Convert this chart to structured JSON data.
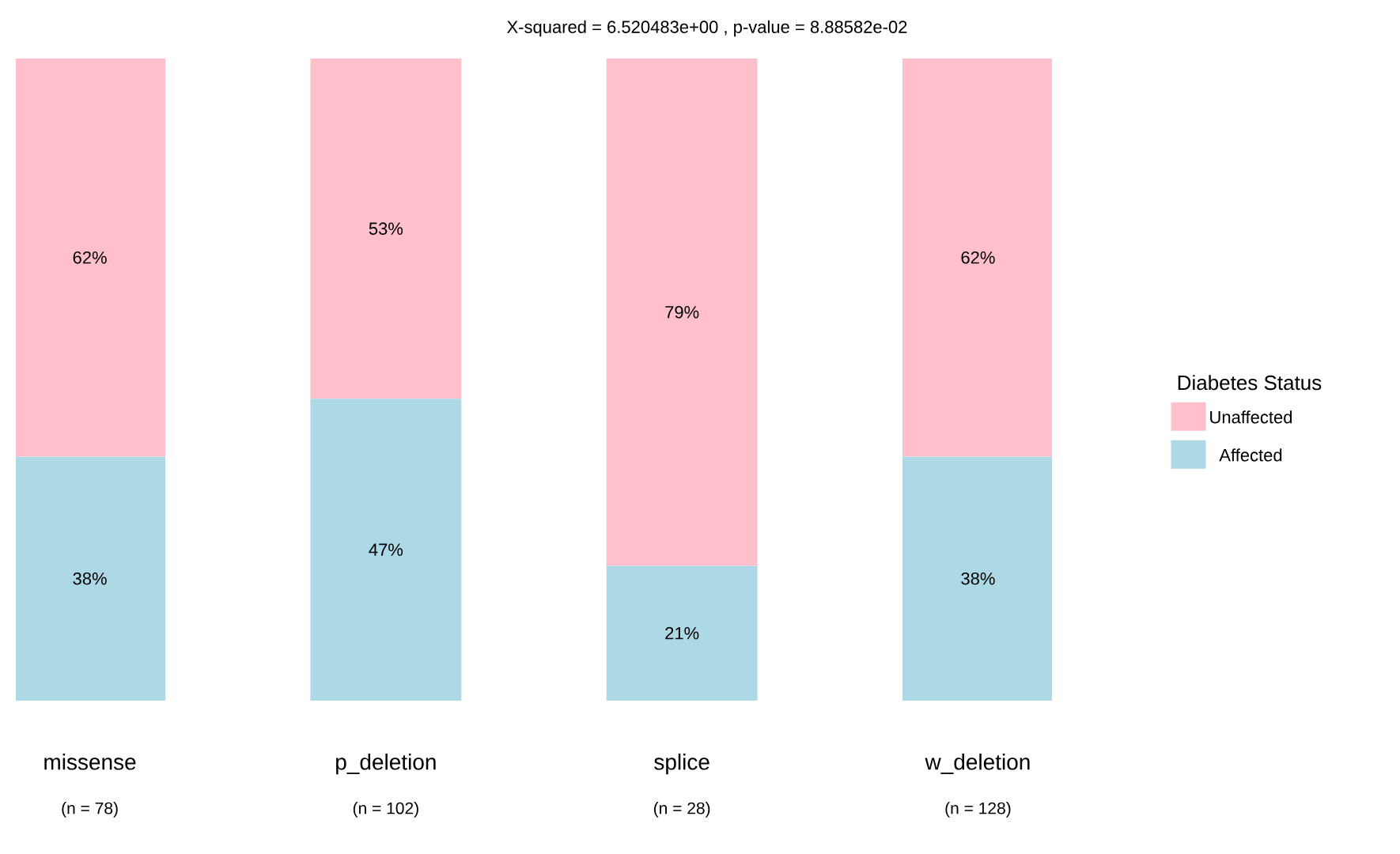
{
  "chart_data": {
    "type": "bar",
    "title": "X-squared = 6.520483e+00 , p-value = 8.88582e-02",
    "categories": [
      "missense",
      "p_deletion",
      "splice",
      "w_deletion"
    ],
    "annotations": [
      "(n = 78)",
      "(n = 102)",
      "(n = 28)",
      "(n = 128)"
    ],
    "stacked": true,
    "ylim": [
      0,
      100
    ],
    "tick_labels": "x",
    "legend": "right",
    "legend_title": "Diabetes Status",
    "series": [
      {
        "name": "Affected",
        "color": "#add8e6",
        "values": [
          38,
          47,
          21,
          38
        ],
        "value_labels": [
          "38%",
          "47%",
          "21%",
          "38%"
        ]
      },
      {
        "name": "Unaffected",
        "color": "#ffc0cb",
        "values": [
          62,
          53,
          79,
          62
        ],
        "value_labels": [
          "62%",
          "53%",
          "79%",
          "62%"
        ]
      }
    ]
  }
}
